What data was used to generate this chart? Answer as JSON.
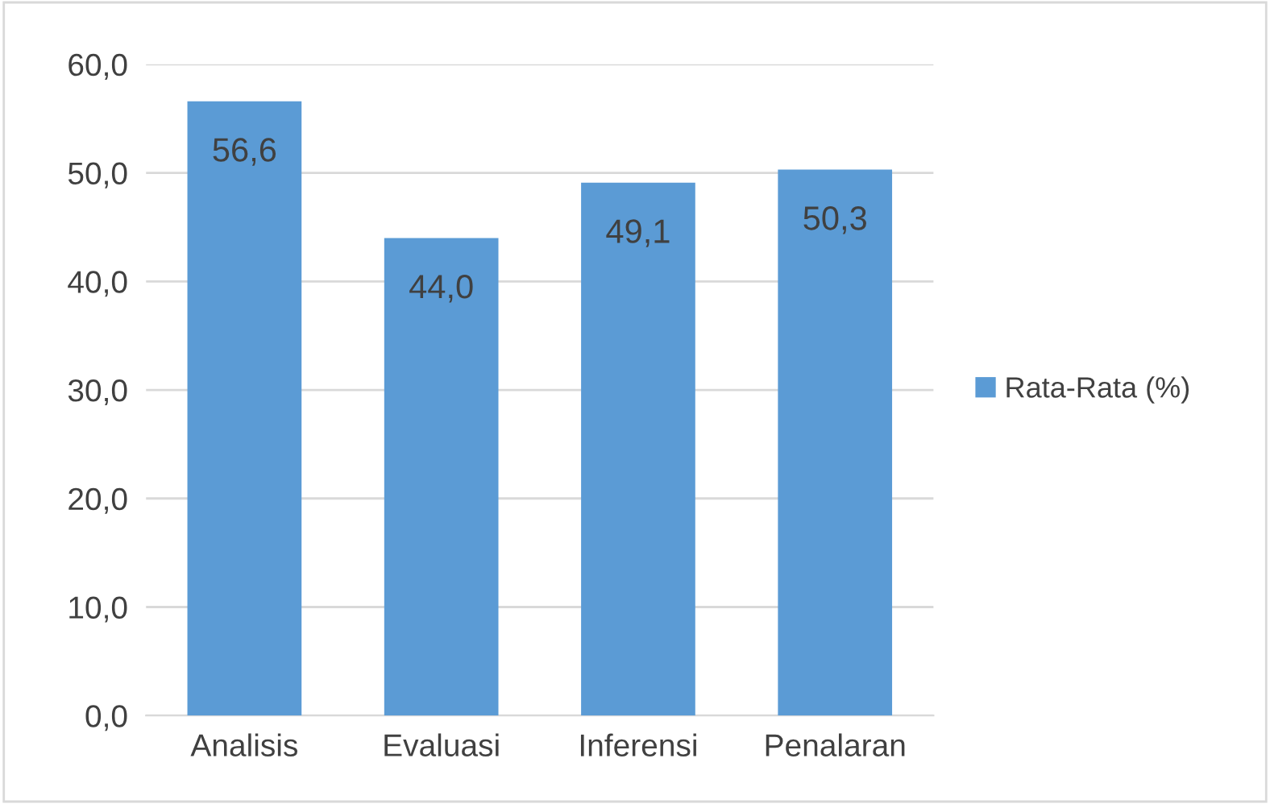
{
  "chart_data": {
    "type": "bar",
    "categories": [
      "Analisis",
      "Evaluasi",
      "Inferensi",
      "Penalaran"
    ],
    "series": [
      {
        "name": "Rata-Rata (%)",
        "color": "#5b9bd5",
        "values": [
          56.6,
          44.0,
          49.1,
          50.3
        ],
        "value_labels": [
          "56,6",
          "44,0",
          "49,1",
          "50,3"
        ]
      }
    ],
    "ylim": [
      0,
      60
    ],
    "yticks": [
      {
        "value": 0,
        "label": "0,0"
      },
      {
        "value": 10,
        "label": "10,0"
      },
      {
        "value": 20,
        "label": "20,0"
      },
      {
        "value": 30,
        "label": "30,0"
      },
      {
        "value": 40,
        "label": "40,0"
      },
      {
        "value": 50,
        "label": "50,0"
      },
      {
        "value": 60,
        "label": "60,0"
      }
    ],
    "grid": "y",
    "legend": "right"
  }
}
